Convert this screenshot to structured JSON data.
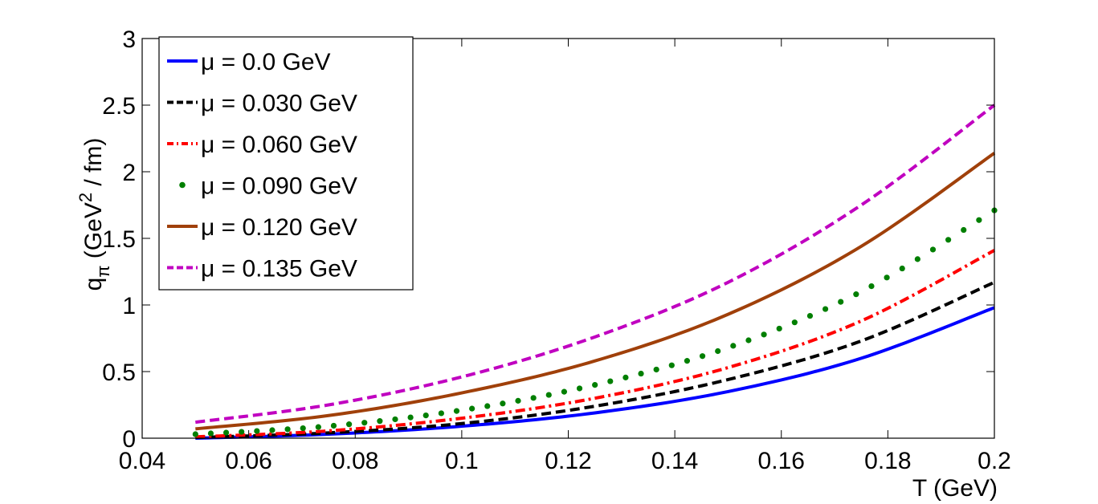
{
  "chart_data": {
    "type": "line",
    "xlabel": "T (GeV)",
    "ylabel_main": "q",
    "ylabel_sub": "π",
    "ylabel_unit_prefix": " (GeV",
    "ylabel_unit_sup": "2",
    "ylabel_unit_suffix": " / fm)",
    "xlim": [
      0.04,
      0.2
    ],
    "ylim": [
      0,
      3
    ],
    "x_ticks": [
      0.04,
      0.06,
      0.08,
      0.1,
      0.12,
      0.14,
      0.16,
      0.18,
      0.2
    ],
    "x_tick_labels": [
      "0.04",
      "0.06",
      "0.08",
      "0.1",
      "0.12",
      "0.14",
      "0.16",
      "0.18",
      "0.2"
    ],
    "y_ticks": [
      0,
      0.5,
      1,
      1.5,
      2,
      2.5,
      3
    ],
    "y_tick_labels": [
      "0",
      "0.5",
      "1",
      "1.5",
      "2",
      "2.5",
      "3"
    ],
    "grid": false,
    "legend_position": "top-left",
    "x": [
      0.05,
      0.075,
      0.1,
      0.125,
      0.15,
      0.175,
      0.2
    ],
    "series": [
      {
        "name": "μ = 0.0 GeV",
        "label": "μ = 0.0 GeV",
        "color": "#0000ff",
        "style": "solid",
        "values": [
          0.0,
          0.03,
          0.09,
          0.19,
          0.35,
          0.6,
          0.98
        ]
      },
      {
        "name": "μ = 0.030 GeV",
        "label": "μ = 0.030 GeV",
        "color": "#000000",
        "style": "dashed",
        "values": [
          0.005,
          0.04,
          0.11,
          0.24,
          0.44,
          0.73,
          1.17
        ]
      },
      {
        "name": "μ = 0.060 GeV",
        "label": "μ = 0.060 GeV",
        "color": "#ff0000",
        "style": "dashdot",
        "values": [
          0.01,
          0.055,
          0.15,
          0.3,
          0.53,
          0.88,
          1.41
        ]
      },
      {
        "name": "μ = 0.090 GeV",
        "label": "μ = 0.090 GeV",
        "color": "#007f00",
        "style": "dotted",
        "values": [
          0.03,
          0.09,
          0.21,
          0.4,
          0.68,
          1.1,
          1.71
        ]
      },
      {
        "name": "μ = 0.120 GeV",
        "label": "μ = 0.120 GeV",
        "color": "#a0400a",
        "style": "solid",
        "values": [
          0.07,
          0.17,
          0.34,
          0.58,
          0.93,
          1.44,
          2.14
        ]
      },
      {
        "name": "μ = 0.135 GeV",
        "label": "μ = 0.135 GeV",
        "color": "#c000c0",
        "style": "dashed",
        "values": [
          0.12,
          0.25,
          0.46,
          0.76,
          1.17,
          1.75,
          2.5
        ]
      }
    ]
  }
}
